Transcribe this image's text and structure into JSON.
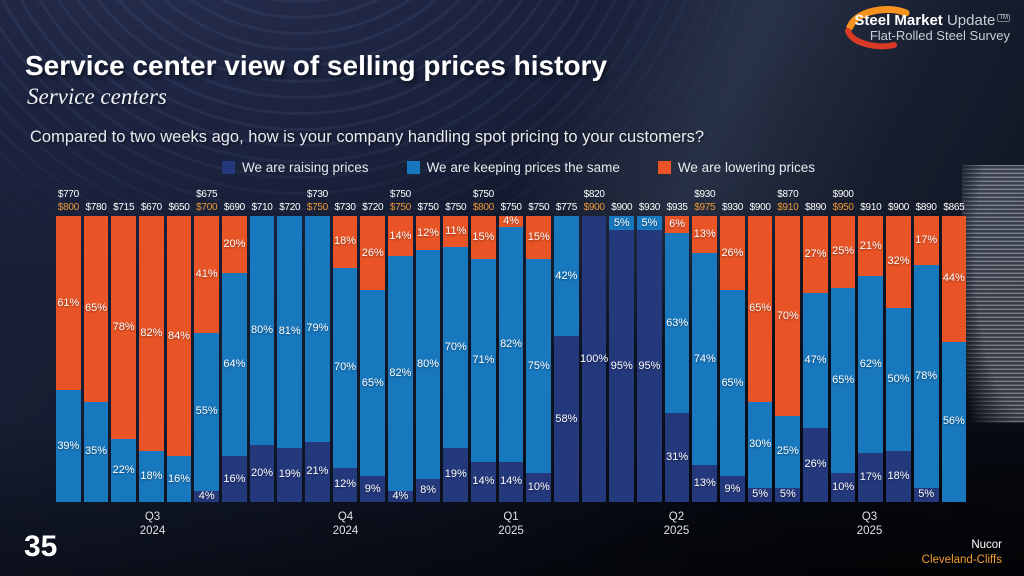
{
  "page": {
    "number": "35"
  },
  "logo": {
    "line1_bold": "Steel Market",
    "line1_light": "Update",
    "tm": "TM",
    "line2": "Flat-Rolled Steel Survey"
  },
  "header": {
    "title": "Service center view of selling prices history",
    "subtitle": "Service centers",
    "question": "Compared to two weeks ago, how is your company handling spot pricing to your customers?"
  },
  "legend": [
    {
      "label": "We are raising prices",
      "color": "#24387c"
    },
    {
      "label": "We are keeping prices the same",
      "color": "#1878be"
    },
    {
      "label": "We are lowering prices",
      "color": "#e95426"
    }
  ],
  "footer": {
    "nucor": "Nucor",
    "cleveland_cliffs": "Cleveland-Cliffs"
  },
  "chart_data": {
    "type": "bar",
    "stacked": true,
    "unit": "percent",
    "ylim": [
      0,
      100
    ],
    "legend_position": "top",
    "series_names": [
      "We are raising prices",
      "We are keeping prices the same",
      "We are lowering prices"
    ],
    "colors": {
      "raising": "#24387c",
      "keeping": "#1878be",
      "lowering": "#e95426",
      "price_nucor": "#ffffff",
      "price_cleveland_cliffs": "#f19a37"
    },
    "quarter_labels": [
      {
        "quarter": "Q3",
        "year": "2024",
        "slot": 4
      },
      {
        "quarter": "Q4",
        "year": "2024",
        "slot": 11
      },
      {
        "quarter": "Q1",
        "year": "2025",
        "slot": 17
      },
      {
        "quarter": "Q2",
        "year": "2025",
        "slot": 23
      },
      {
        "quarter": "Q3",
        "year": "2025",
        "slot": 30
      }
    ],
    "bars": [
      {
        "nucor_price": "$770",
        "cc_price": "$800",
        "raising": 0,
        "keeping": 39,
        "lowering": 61
      },
      {
        "nucor_price": "$780",
        "cc_price": null,
        "raising": 0,
        "keeping": 35,
        "lowering": 65
      },
      {
        "nucor_price": "$715",
        "cc_price": null,
        "raising": 0,
        "keeping": 22,
        "lowering": 78
      },
      {
        "nucor_price": "$670",
        "cc_price": null,
        "raising": 0,
        "keeping": 18,
        "lowering": 82
      },
      {
        "nucor_price": "$650",
        "cc_price": null,
        "raising": 0,
        "keeping": 16,
        "lowering": 84
      },
      {
        "nucor_price": "$675",
        "cc_price": "$700",
        "raising": 4,
        "keeping": 55,
        "lowering": 41
      },
      {
        "nucor_price": "$690",
        "cc_price": null,
        "raising": 16,
        "keeping": 64,
        "lowering": 20
      },
      {
        "nucor_price": "$710",
        "cc_price": null,
        "raising": 20,
        "keeping": 80,
        "lowering": 0
      },
      {
        "nucor_price": "$720",
        "cc_price": null,
        "raising": 19,
        "keeping": 81,
        "lowering": 0
      },
      {
        "nucor_price": "$730",
        "cc_price": "$750",
        "raising": 21,
        "keeping": 79,
        "lowering": 0
      },
      {
        "nucor_price": "$730",
        "cc_price": null,
        "raising": 12,
        "keeping": 70,
        "lowering": 18
      },
      {
        "nucor_price": "$720",
        "cc_price": null,
        "raising": 9,
        "keeping": 65,
        "lowering": 26
      },
      {
        "nucor_price": "$750",
        "cc_price": "$750",
        "raising": 4,
        "keeping": 82,
        "lowering": 14
      },
      {
        "nucor_price": "$750",
        "cc_price": null,
        "raising": 8,
        "keeping": 80,
        "lowering": 12
      },
      {
        "nucor_price": "$750",
        "cc_price": null,
        "raising": 19,
        "keeping": 70,
        "lowering": 11
      },
      {
        "nucor_price": "$750",
        "cc_price": "$800",
        "raising": 14,
        "keeping": 71,
        "lowering": 15
      },
      {
        "nucor_price": "$750",
        "cc_price": null,
        "raising": 14,
        "keeping": 82,
        "lowering": 4
      },
      {
        "nucor_price": "$750",
        "cc_price": null,
        "raising": 10,
        "keeping": 75,
        "lowering": 15
      },
      {
        "nucor_price": "$775",
        "cc_price": null,
        "raising": 58,
        "keeping": 42,
        "lowering": 0
      },
      {
        "nucor_price": "$820",
        "cc_price": "$900",
        "raising": 100,
        "keeping": 0,
        "lowering": 0
      },
      {
        "nucor_price": "$900",
        "cc_price": null,
        "raising": 95,
        "keeping": 5,
        "lowering": 0
      },
      {
        "nucor_price": "$930",
        "cc_price": null,
        "raising": 95,
        "keeping": 5,
        "lowering": 0
      },
      {
        "nucor_price": "$935",
        "cc_price": null,
        "raising": 31,
        "keeping": 63,
        "lowering": 6
      },
      {
        "nucor_price": "$930",
        "cc_price": "$975",
        "raising": 13,
        "keeping": 74,
        "lowering": 13
      },
      {
        "nucor_price": "$930",
        "cc_price": null,
        "raising": 9,
        "keeping": 65,
        "lowering": 26
      },
      {
        "nucor_price": "$900",
        "cc_price": null,
        "raising": 5,
        "keeping": 30,
        "lowering": 65
      },
      {
        "nucor_price": "$870",
        "cc_price": "$910",
        "raising": 5,
        "keeping": 25,
        "lowering": 70
      },
      {
        "nucor_price": "$890",
        "cc_price": null,
        "raising": 26,
        "keeping": 47,
        "lowering": 27
      },
      {
        "nucor_price": "$900",
        "cc_price": "$950",
        "raising": 10,
        "keeping": 65,
        "lowering": 25
      },
      {
        "nucor_price": "$910",
        "cc_price": null,
        "raising": 17,
        "keeping": 62,
        "lowering": 21
      },
      {
        "nucor_price": "$900",
        "cc_price": null,
        "raising": 18,
        "keeping": 50,
        "lowering": 32
      },
      {
        "nucor_price": "$890",
        "cc_price": null,
        "raising": 5,
        "keeping": 78,
        "lowering": 17
      },
      {
        "nucor_price": "$865",
        "cc_price": null,
        "raising": 0,
        "keeping": 56,
        "lowering": 44
      }
    ]
  }
}
